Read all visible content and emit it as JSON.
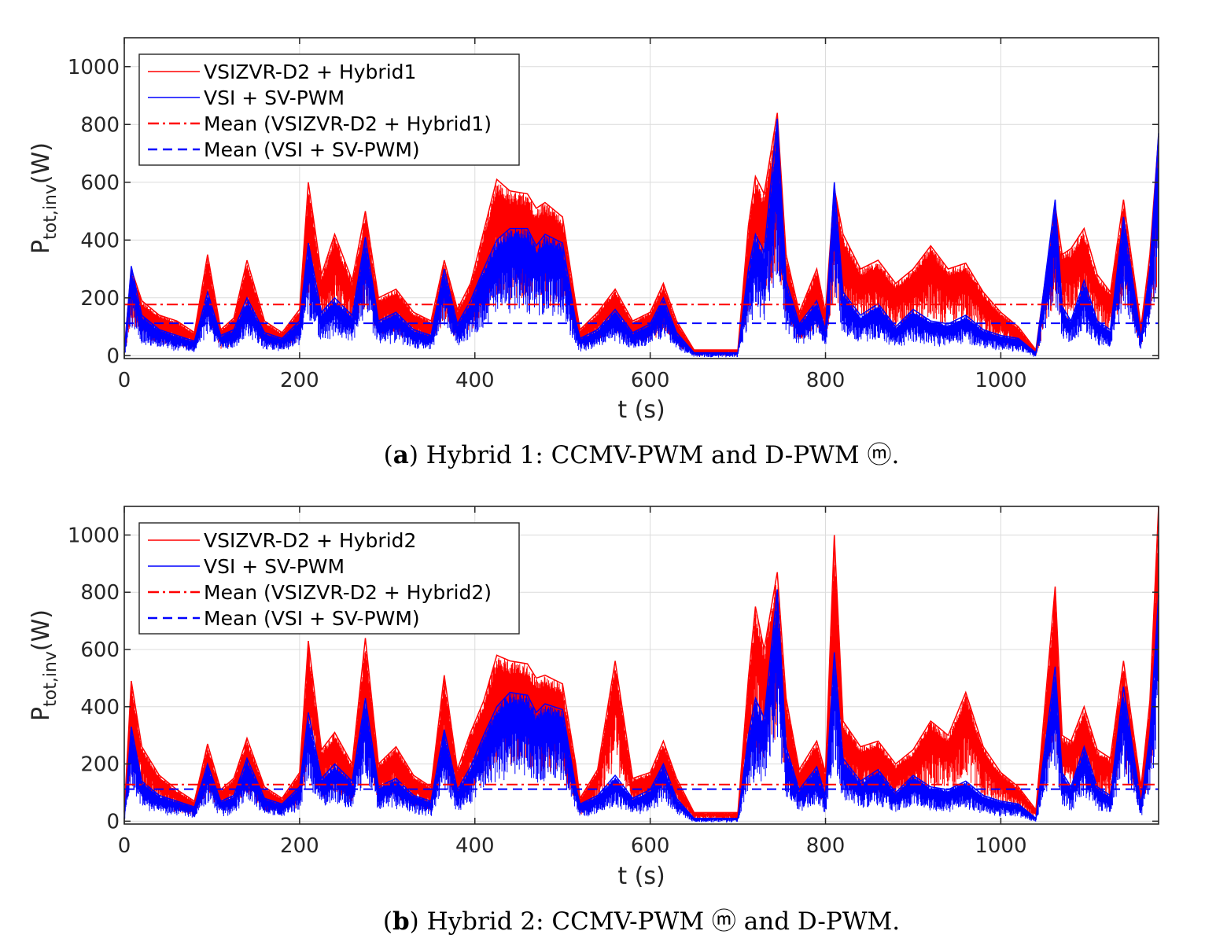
{
  "chart_data": [
    {
      "type": "line",
      "caption": {
        "letter": "a",
        "text": "Hybrid 1: CCMV-PWM and D-PWM ⓜ."
      },
      "xlabel": "t (s)",
      "ylabel": {
        "main": "P",
        "sub": "tot,inv",
        "unit": "(W)"
      },
      "xlim": [
        0,
        1180
      ],
      "ylim": [
        -10,
        1100
      ],
      "xticks": [
        0,
        200,
        400,
        600,
        800,
        1000
      ],
      "yticks": [
        0,
        200,
        400,
        600,
        800,
        1000
      ],
      "grid": true,
      "legend_position": "top-left",
      "series": [
        {
          "name": "VSIZVR-D2 + Hybrid1",
          "color": "#ff0000",
          "style": "solid",
          "role": "upper",
          "x": [
            0,
            8,
            20,
            40,
            60,
            80,
            95,
            110,
            125,
            140,
            160,
            180,
            200,
            210,
            225,
            240,
            260,
            275,
            290,
            310,
            330,
            350,
            365,
            380,
            395,
            410,
            425,
            440,
            460,
            470,
            480,
            500,
            515,
            520,
            540,
            560,
            580,
            600,
            615,
            630,
            650,
            680,
            700,
            712,
            720,
            730,
            745,
            755,
            770,
            790,
            800,
            810,
            820,
            840,
            860,
            880,
            900,
            920,
            940,
            960,
            980,
            1000,
            1020,
            1040,
            1062,
            1070,
            1080,
            1095,
            1110,
            1125,
            1140,
            1160,
            1170,
            1180
          ],
          "y": [
            20,
            300,
            190,
            140,
            120,
            80,
            350,
            90,
            130,
            330,
            120,
            80,
            160,
            600,
            280,
            420,
            260,
            500,
            200,
            230,
            150,
            120,
            330,
            160,
            250,
            430,
            610,
            570,
            560,
            510,
            530,
            480,
            180,
            90,
            150,
            230,
            120,
            150,
            250,
            120,
            20,
            20,
            20,
            450,
            620,
            560,
            840,
            350,
            150,
            300,
            150,
            580,
            420,
            300,
            330,
            250,
            300,
            380,
            300,
            320,
            220,
            150,
            100,
            20,
            520,
            350,
            370,
            440,
            280,
            220,
            540,
            100,
            350,
            760
          ]
        },
        {
          "name": "VSI + SV-PWM",
          "color": "#0000ff",
          "style": "solid",
          "role": "lower",
          "x": [
            0,
            8,
            20,
            40,
            60,
            80,
            95,
            110,
            125,
            140,
            160,
            180,
            200,
            210,
            225,
            240,
            260,
            275,
            290,
            310,
            330,
            350,
            365,
            380,
            395,
            410,
            425,
            440,
            460,
            470,
            480,
            500,
            515,
            520,
            540,
            560,
            580,
            600,
            615,
            630,
            650,
            680,
            700,
            712,
            720,
            730,
            745,
            755,
            770,
            790,
            800,
            810,
            820,
            840,
            860,
            880,
            900,
            920,
            940,
            960,
            980,
            1000,
            1020,
            1040,
            1062,
            1070,
            1080,
            1095,
            1110,
            1125,
            1140,
            1160,
            1170,
            1180
          ],
          "y": [
            10,
            310,
            140,
            90,
            70,
            50,
            220,
            70,
            90,
            200,
            80,
            60,
            120,
            390,
            150,
            200,
            140,
            410,
            120,
            150,
            90,
            70,
            300,
            110,
            190,
            300,
            400,
            440,
            440,
            380,
            420,
            390,
            120,
            60,
            90,
            160,
            80,
            110,
            200,
            80,
            10,
            10,
            10,
            300,
            420,
            360,
            820,
            260,
            110,
            190,
            90,
            600,
            220,
            140,
            180,
            100,
            160,
            120,
            110,
            140,
            90,
            70,
            60,
            10,
            540,
            170,
            120,
            260,
            120,
            90,
            480,
            60,
            300,
            770
          ]
        },
        {
          "name": "Mean (VSIZVR-D2 + Hybrid1)",
          "color": "#ff0000",
          "style": "dashdot",
          "y": 177
        },
        {
          "name": "Mean (VSI + SV-PWM)",
          "color": "#0000ff",
          "style": "dashed",
          "y": 112
        }
      ]
    },
    {
      "type": "line",
      "caption": {
        "letter": "b",
        "text": "Hybrid 2: CCMV-PWM ⓜ and D-PWM."
      },
      "xlabel": "t (s)",
      "ylabel": {
        "main": "P",
        "sub": "tot,inv",
        "unit": "(W)"
      },
      "xlim": [
        0,
        1180
      ],
      "ylim": [
        -10,
        1100
      ],
      "xticks": [
        0,
        200,
        400,
        600,
        800,
        1000
      ],
      "yticks": [
        0,
        200,
        400,
        600,
        800,
        1000
      ],
      "grid": true,
      "legend_position": "top-left",
      "series": [
        {
          "name": "VSIZVR-D2 + Hybrid2",
          "color": "#ff0000",
          "style": "solid",
          "role": "upper",
          "x": [
            0,
            8,
            20,
            40,
            60,
            80,
            95,
            110,
            125,
            140,
            160,
            180,
            200,
            210,
            225,
            240,
            260,
            275,
            290,
            310,
            330,
            350,
            365,
            380,
            395,
            410,
            425,
            440,
            460,
            470,
            480,
            500,
            515,
            520,
            540,
            560,
            580,
            600,
            615,
            630,
            650,
            680,
            700,
            712,
            720,
            730,
            745,
            755,
            770,
            790,
            800,
            810,
            820,
            840,
            860,
            880,
            900,
            920,
            940,
            960,
            980,
            1000,
            1020,
            1040,
            1062,
            1070,
            1080,
            1095,
            1110,
            1125,
            1140,
            1160,
            1170,
            1180
          ],
          "y": [
            30,
            490,
            260,
            160,
            110,
            70,
            270,
            110,
            150,
            290,
            120,
            80,
            170,
            630,
            250,
            310,
            200,
            640,
            200,
            260,
            160,
            120,
            510,
            180,
            310,
            420,
            580,
            560,
            550,
            500,
            510,
            480,
            200,
            80,
            180,
            560,
            150,
            170,
            280,
            150,
            30,
            30,
            30,
            500,
            750,
            600,
            870,
            430,
            180,
            280,
            170,
            1000,
            350,
            260,
            280,
            200,
            250,
            350,
            300,
            450,
            260,
            170,
            120,
            40,
            820,
            300,
            280,
            400,
            250,
            220,
            560,
            120,
            420,
            1100
          ]
        },
        {
          "name": "VSI + SV-PWM",
          "color": "#0000ff",
          "style": "solid",
          "role": "lower",
          "x": [
            0,
            8,
            20,
            40,
            60,
            80,
            95,
            110,
            125,
            140,
            160,
            180,
            200,
            210,
            225,
            240,
            260,
            275,
            290,
            310,
            330,
            350,
            365,
            380,
            395,
            410,
            425,
            440,
            460,
            470,
            480,
            500,
            515,
            520,
            540,
            560,
            580,
            600,
            615,
            630,
            650,
            680,
            700,
            712,
            720,
            730,
            745,
            755,
            770,
            790,
            800,
            810,
            820,
            840,
            860,
            880,
            900,
            920,
            940,
            960,
            980,
            1000,
            1020,
            1040,
            1062,
            1070,
            1080,
            1095,
            1110,
            1125,
            1140,
            1160,
            1170,
            1180
          ],
          "y": [
            10,
            330,
            140,
            90,
            70,
            50,
            200,
            70,
            90,
            220,
            80,
            60,
            120,
            380,
            150,
            200,
            140,
            430,
            120,
            150,
            90,
            70,
            320,
            110,
            190,
            300,
            400,
            450,
            440,
            380,
            410,
            390,
            120,
            60,
            90,
            160,
            80,
            110,
            200,
            80,
            10,
            10,
            10,
            300,
            430,
            360,
            810,
            260,
            110,
            190,
            90,
            590,
            220,
            140,
            180,
            100,
            160,
            120,
            110,
            140,
            90,
            70,
            60,
            10,
            540,
            170,
            120,
            260,
            120,
            90,
            470,
            60,
            300,
            790
          ]
        },
        {
          "name": "Mean (VSIZVR-D2 + Hybrid2)",
          "color": "#ff0000",
          "style": "dashdot",
          "y": 128
        },
        {
          "name": "Mean (VSI + SV-PWM)",
          "color": "#0000ff",
          "style": "dashed",
          "y": 112
        }
      ]
    }
  ]
}
